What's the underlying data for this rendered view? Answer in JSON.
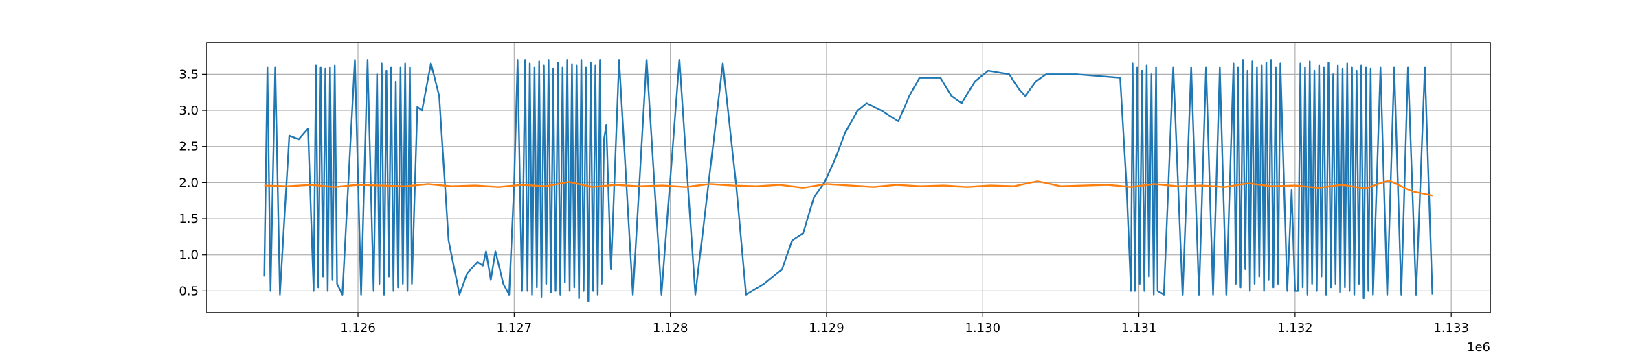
{
  "chart_data": {
    "type": "line",
    "xlim": [
      1125032,
      1133250
    ],
    "xticks": [
      {
        "value": 1126000,
        "label": "1.126"
      },
      {
        "value": 1127000,
        "label": "1.127"
      },
      {
        "value": 1128000,
        "label": "1.128"
      },
      {
        "value": 1129000,
        "label": "1.129"
      },
      {
        "value": 1130000,
        "label": "1.130"
      },
      {
        "value": 1131000,
        "label": "1.131"
      },
      {
        "value": 1132000,
        "label": "1.132"
      },
      {
        "value": 1133000,
        "label": "1.133"
      }
    ],
    "x_offset_label": "1e6",
    "ylim": [
      0.2,
      3.94
    ],
    "yticks": [
      0.5,
      {
        "value": 1,
        "label": "1.0"
      },
      1.5,
      {
        "value": 2,
        "label": "2.0"
      },
      2.5,
      {
        "value": 3,
        "label": "3.0"
      },
      3.5
    ],
    "grid": true,
    "series": [
      {
        "color": "#1f77b4",
        "x": [
          1125400,
          1125420,
          1125440,
          1125470,
          1125500,
          1125560,
          1125620,
          1125680,
          1125716,
          1125731,
          1125746,
          1125761,
          1125776,
          1125791,
          1125806,
          1125821,
          1125836,
          1125851,
          1125866,
          1125900,
          1125980,
          1126020,
          1126061,
          1126100,
          1126122,
          1126137,
          1126152,
          1126167,
          1126182,
          1126197,
          1126212,
          1126227,
          1126242,
          1126257,
          1126272,
          1126287,
          1126302,
          1126317,
          1126332,
          1126345,
          1126380,
          1126410,
          1126467,
          1126520,
          1126580,
          1126650,
          1126700,
          1126765,
          1126800,
          1126820,
          1126850,
          1126880,
          1126930,
          1126968,
          1127000,
          1127022,
          1127050,
          1127070,
          1127085,
          1127100,
          1127115,
          1127130,
          1127145,
          1127160,
          1127175,
          1127190,
          1127205,
          1127220,
          1127235,
          1127250,
          1127265,
          1127280,
          1127295,
          1127310,
          1127325,
          1127340,
          1127355,
          1127370,
          1127385,
          1127400,
          1127415,
          1127430,
          1127445,
          1127460,
          1127475,
          1127490,
          1127505,
          1127520,
          1127535,
          1127550,
          1127560,
          1127575,
          1127590,
          1127620,
          1127672,
          1127760,
          1127848,
          1127943,
          1128058,
          1128160,
          1128336,
          1128420,
          1128485,
          1128600,
          1128715,
          1128780,
          1128850,
          1128920,
          1128986,
          1129050,
          1129121,
          1129200,
          1129257,
          1129350,
          1129460,
          1129530,
          1129595,
          1129730,
          1129800,
          1129865,
          1129950,
          1130035,
          1130170,
          1130230,
          1130272,
          1130340,
          1130406,
          1130600,
          1130880,
          1130920,
          1130949,
          1130960,
          1130975,
          1130990,
          1131005,
          1131020,
          1131035,
          1131050,
          1131065,
          1131080,
          1131095,
          1131110,
          1131120,
          1131160,
          1131220,
          1131280,
          1131335,
          1131385,
          1131430,
          1131475,
          1131518,
          1131560,
          1131606,
          1131621,
          1131636,
          1131651,
          1131666,
          1131681,
          1131696,
          1131711,
          1131726,
          1131741,
          1131756,
          1131771,
          1131786,
          1131801,
          1131816,
          1131831,
          1131846,
          1131861,
          1131876,
          1131891,
          1131906,
          1131950,
          1131978,
          1132000,
          1132019,
          1132034,
          1132049,
          1132064,
          1132079,
          1132094,
          1132109,
          1132124,
          1132139,
          1132154,
          1132169,
          1132184,
          1132199,
          1132214,
          1132229,
          1132244,
          1132259,
          1132274,
          1132289,
          1132304,
          1132319,
          1132334,
          1132349,
          1132364,
          1132379,
          1132394,
          1132409,
          1132424,
          1132439,
          1132454,
          1132469,
          1132484,
          1132499,
          1132547,
          1132590,
          1132635,
          1132680,
          1132723,
          1132775,
          1132831,
          1132879
        ],
        "values": [
          0.7,
          3.6,
          0.5,
          3.6,
          0.45,
          2.65,
          2.6,
          2.75,
          0.5,
          3.62,
          0.55,
          3.6,
          0.7,
          3.58,
          0.5,
          3.6,
          0.65,
          3.62,
          0.6,
          0.45,
          3.7,
          0.45,
          3.7,
          0.5,
          3.5,
          0.6,
          3.65,
          0.45,
          3.55,
          0.7,
          3.6,
          0.5,
          3.4,
          0.55,
          3.6,
          0.6,
          3.65,
          0.5,
          3.6,
          0.6,
          3.05,
          3.0,
          3.65,
          3.2,
          1.2,
          0.45,
          0.75,
          0.9,
          0.85,
          1.05,
          0.65,
          1.05,
          0.6,
          0.45,
          2.0,
          3.7,
          0.5,
          3.7,
          0.5,
          3.65,
          0.45,
          3.6,
          0.55,
          3.68,
          0.42,
          3.62,
          0.6,
          3.7,
          0.48,
          3.58,
          0.5,
          3.66,
          0.45,
          3.6,
          0.62,
          3.7,
          0.5,
          3.64,
          0.55,
          3.62,
          0.4,
          3.7,
          0.5,
          3.6,
          0.36,
          3.66,
          0.5,
          3.62,
          0.45,
          3.7,
          0.6,
          2.6,
          2.8,
          0.8,
          3.7,
          0.45,
          3.7,
          0.45,
          3.7,
          0.45,
          3.65,
          2.0,
          0.45,
          0.6,
          0.8,
          1.2,
          1.3,
          1.8,
          2.0,
          2.3,
          2.7,
          3.0,
          3.1,
          3.0,
          2.85,
          3.2,
          3.45,
          3.45,
          3.2,
          3.1,
          3.4,
          3.55,
          3.5,
          3.3,
          3.2,
          3.4,
          3.5,
          3.5,
          3.45,
          2.0,
          0.5,
          3.65,
          0.5,
          3.6,
          0.6,
          3.55,
          0.5,
          3.62,
          0.7,
          3.5,
          0.45,
          3.6,
          0.5,
          0.45,
          3.6,
          0.45,
          3.6,
          0.45,
          3.6,
          0.45,
          3.6,
          0.45,
          3.65,
          0.6,
          3.6,
          0.55,
          3.7,
          0.8,
          3.55,
          0.5,
          3.68,
          0.6,
          3.6,
          0.7,
          3.62,
          0.5,
          3.66,
          0.65,
          3.7,
          0.55,
          3.6,
          0.6,
          3.65,
          0.5,
          1.9,
          0.5,
          0.5,
          3.65,
          0.55,
          3.6,
          0.45,
          3.68,
          0.6,
          3.55,
          0.5,
          3.62,
          0.7,
          3.6,
          0.45,
          3.66,
          0.55,
          3.5,
          0.6,
          3.62,
          0.48,
          3.58,
          0.55,
          3.65,
          0.5,
          3.6,
          0.45,
          3.55,
          0.6,
          3.62,
          0.4,
          3.6,
          0.5,
          3.58,
          0.45,
          3.6,
          0.45,
          3.6,
          0.45,
          3.6,
          0.45,
          3.6,
          0.45
        ]
      },
      {
        "color": "#ff7f0e",
        "x": [
          1125400,
          1125550,
          1125700,
          1125850,
          1126000,
          1126150,
          1126300,
          1126450,
          1126600,
          1126750,
          1126900,
          1127050,
          1127200,
          1127350,
          1127500,
          1127650,
          1127800,
          1127950,
          1128100,
          1128250,
          1128400,
          1128550,
          1128700,
          1128850,
          1129000,
          1129150,
          1129300,
          1129450,
          1129600,
          1129750,
          1129900,
          1130050,
          1130200,
          1130350,
          1130500,
          1130650,
          1130800,
          1130950,
          1131100,
          1131250,
          1131400,
          1131550,
          1131700,
          1131850,
          1132000,
          1132150,
          1132300,
          1132450,
          1132600,
          1132750,
          1132880
        ],
        "values": [
          1.96,
          1.95,
          1.97,
          1.94,
          1.97,
          1.96,
          1.95,
          1.98,
          1.95,
          1.96,
          1.94,
          1.97,
          1.95,
          2.01,
          1.94,
          1.97,
          1.95,
          1.96,
          1.94,
          1.98,
          1.96,
          1.95,
          1.97,
          1.93,
          1.98,
          1.96,
          1.94,
          1.97,
          1.95,
          1.96,
          1.94,
          1.96,
          1.95,
          2.02,
          1.95,
          1.96,
          1.97,
          1.94,
          1.98,
          1.95,
          1.96,
          1.94,
          1.99,
          1.95,
          1.96,
          1.93,
          1.97,
          1.92,
          2.03,
          1.88,
          1.82
        ]
      }
    ]
  }
}
